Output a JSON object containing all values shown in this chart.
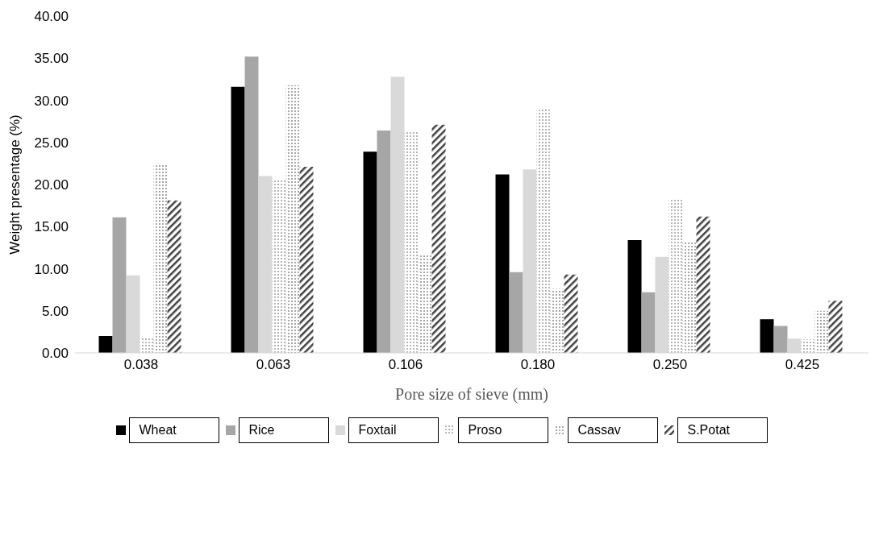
{
  "chart_data": {
    "type": "bar",
    "xlabel": "Pore size of sieve (mm)",
    "ylabel": "Weight presentage (%)",
    "categories": [
      "0.038",
      "0.063",
      "0.106",
      "0.180",
      "0.250",
      "0.425"
    ],
    "series": [
      {
        "name": "Wheat",
        "color": "#000000",
        "values": [
          2.0,
          31.6,
          23.9,
          21.2,
          13.4,
          4.0
        ]
      },
      {
        "name": "Rice",
        "color": "#a6a6a6",
        "values": [
          16.1,
          35.2,
          26.4,
          9.6,
          7.2,
          3.2
        ]
      },
      {
        "name": "Foxtail",
        "color": "#d9d9d9",
        "values": [
          9.2,
          21.0,
          32.8,
          21.8,
          11.4,
          1.7
        ]
      },
      {
        "name": "Proso",
        "color": "#595959",
        "values": [
          1.8,
          20.5,
          26.3,
          29.1,
          18.3,
          1.6
        ]
      },
      {
        "name": "Cassav",
        "color": "#7f7f7f",
        "values": [
          22.5,
          31.8,
          11.6,
          7.6,
          13.3,
          5.0
        ]
      },
      {
        "name": "S.Potat",
        "color": "#404040",
        "values": [
          18.1,
          22.1,
          27.1,
          9.3,
          16.2,
          6.2
        ]
      }
    ],
    "ylim": [
      0,
      40
    ],
    "yticks": [
      {
        "value": 0,
        "label": "0.00"
      },
      {
        "value": 5,
        "label": "5.00"
      },
      {
        "value": 10,
        "label": "10.00"
      },
      {
        "value": 15,
        "label": "15.00"
      },
      {
        "value": 20,
        "label": "20.00"
      },
      {
        "value": 25,
        "label": "25.00"
      },
      {
        "value": 30,
        "label": "30.00"
      },
      {
        "value": 35,
        "label": "35.00"
      },
      {
        "value": 40,
        "label": "40.00"
      }
    ],
    "grid": false,
    "legend": "bottom"
  }
}
